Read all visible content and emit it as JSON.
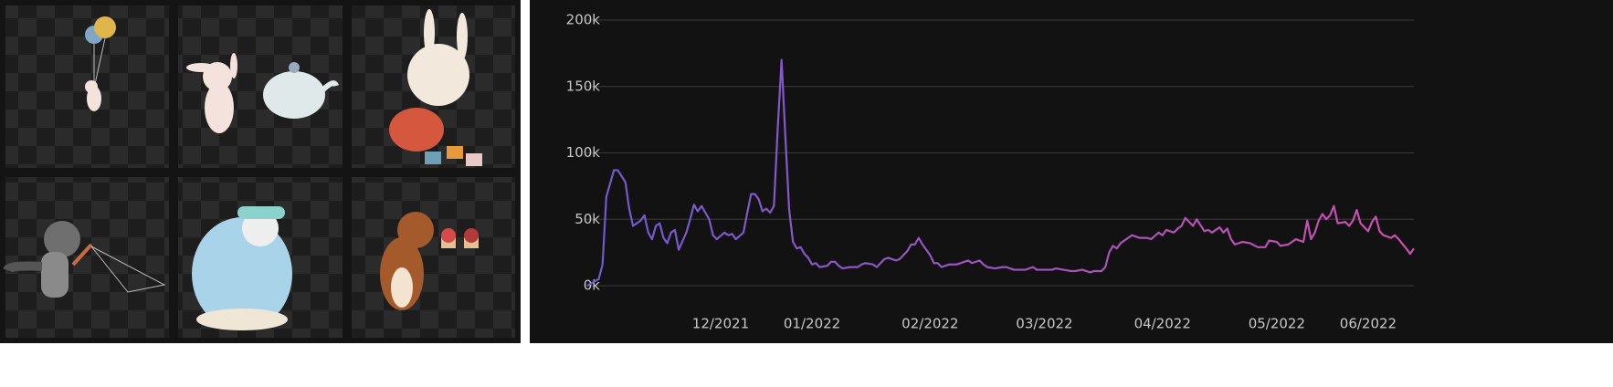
{
  "chart_data": {
    "type": "line",
    "x": [
      0,
      3,
      4,
      5,
      7,
      8,
      10,
      11,
      12,
      14,
      15,
      16,
      17,
      18,
      19,
      20,
      21,
      22,
      23,
      24,
      26,
      27,
      28,
      29,
      30,
      32,
      33,
      34,
      36,
      37,
      38,
      39,
      41,
      42,
      43,
      44,
      45,
      46,
      47,
      48,
      49,
      50,
      51,
      52,
      53,
      54,
      55,
      56,
      57,
      58,
      59,
      60,
      61,
      63,
      64,
      65,
      66,
      67,
      69,
      71,
      72,
      73,
      75,
      76,
      77,
      78,
      79,
      81,
      82,
      84,
      85,
      86,
      87,
      88,
      90,
      91,
      92,
      93,
      95,
      97,
      99,
      100,
      101,
      103,
      104,
      105,
      107,
      109,
      110,
      112,
      113,
      115,
      117,
      118,
      120,
      122,
      123,
      125,
      127,
      128,
      130,
      132,
      133,
      135,
      136,
      137,
      138,
      139,
      140,
      141,
      143,
      144,
      145,
      147,
      148,
      150,
      151,
      152,
      154,
      155,
      156,
      157,
      158,
      159,
      160,
      162,
      163,
      164,
      166,
      167,
      168,
      169,
      170,
      172,
      174,
      176,
      178,
      179,
      181,
      182,
      184,
      185,
      186,
      188,
      189,
      190,
      191,
      192,
      193,
      194,
      195,
      196,
      197,
      199,
      200,
      201,
      202,
      203,
      205,
      206,
      207,
      208,
      209,
      211,
      212,
      213,
      215,
      216,
      217
    ],
    "values": [
      0,
      5000,
      16000,
      67000,
      87000,
      87000,
      78000,
      58000,
      45000,
      49000,
      53000,
      40000,
      35000,
      45000,
      47000,
      36000,
      32000,
      40000,
      42000,
      27000,
      40000,
      50000,
      61000,
      56000,
      60000,
      50000,
      38000,
      35000,
      40000,
      38000,
      39000,
      35000,
      40000,
      55000,
      69000,
      69000,
      65000,
      56000,
      58000,
      55000,
      60000,
      119000,
      170000,
      112000,
      57000,
      33000,
      28000,
      29000,
      24000,
      21000,
      16000,
      17000,
      14000,
      15000,
      18000,
      18000,
      15000,
      13000,
      14000,
      14000,
      16000,
      17000,
      16000,
      14000,
      17000,
      20000,
      21000,
      19000,
      20000,
      26000,
      31000,
      31000,
      36000,
      31000,
      23000,
      17000,
      17000,
      14000,
      16000,
      16000,
      18000,
      19000,
      17000,
      19000,
      16000,
      14000,
      13000,
      14000,
      14000,
      12000,
      12000,
      12000,
      14000,
      12000,
      12000,
      12000,
      13000,
      12000,
      11000,
      11000,
      12000,
      10000,
      11000,
      11000,
      14000,
      25000,
      30000,
      28000,
      32000,
      34000,
      38000,
      37000,
      36000,
      36000,
      35000,
      40000,
      38000,
      42000,
      40000,
      43000,
      45000,
      51000,
      48000,
      45000,
      50000,
      41000,
      42000,
      40000,
      44000,
      40000,
      43000,
      35000,
      31000,
      33000,
      32000,
      29000,
      29000,
      34000,
      33000,
      30000,
      31000,
      33000,
      35000,
      33000,
      49000,
      35000,
      40000,
      49000,
      54000,
      50000,
      53000,
      60000,
      47000,
      48000,
      45000,
      49000,
      57000,
      47000,
      41000,
      48000,
      52000,
      41000,
      38000,
      36000,
      38000,
      35000,
      28000,
      24000,
      28000
    ],
    "colors": [
      "#6f5ad0",
      "#cc4fae"
    ],
    "xlim": [
      0,
      217
    ],
    "xticks": [
      {
        "value": 35,
        "label": "12/2021"
      },
      {
        "value": 59,
        "label": "01/2022"
      },
      {
        "value": 90,
        "label": "02/2022"
      },
      {
        "value": 120,
        "label": "03/2022"
      },
      {
        "value": 151,
        "label": "04/2022"
      },
      {
        "value": 181,
        "label": "05/2022"
      },
      {
        "value": 205,
        "label": "06/2022"
      }
    ],
    "ylim": [
      0,
      200000
    ],
    "yticks": [
      {
        "value": 0,
        "label": "0k"
      },
      {
        "value": 50000,
        "label": "50k"
      },
      {
        "value": 100000,
        "label": "100k"
      },
      {
        "value": 150000,
        "label": "150k"
      },
      {
        "value": 200000,
        "label": "200k"
      }
    ],
    "grid": true
  }
}
